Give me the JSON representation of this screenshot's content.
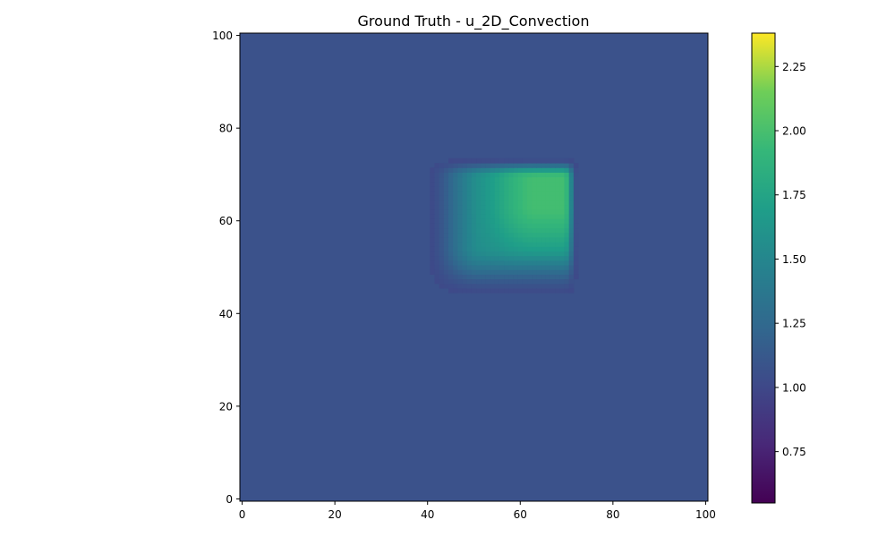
{
  "chart_data": {
    "type": "heatmap",
    "title": "Ground Truth - u_2D_Convection",
    "xlabel": "",
    "ylabel": "",
    "xlim": [
      0,
      101
    ],
    "ylim": [
      0,
      101
    ],
    "x_ticks": [
      0,
      20,
      40,
      60,
      80,
      100
    ],
    "y_ticks": [
      0,
      20,
      40,
      60,
      80,
      100
    ],
    "x_tick_labels": [
      "0",
      "20",
      "40",
      "60",
      "80",
      "100"
    ],
    "y_tick_labels": [
      "0",
      "20",
      "40",
      "60",
      "80",
      "100"
    ],
    "grid": false,
    "colormap": "viridis",
    "colorbar": {
      "vmin": 0.55,
      "vmax": 2.38,
      "ticks": [
        0.75,
        1.0,
        1.25,
        1.5,
        1.75,
        2.0,
        2.25
      ],
      "tick_labels": [
        "0.75",
        "1.00",
        "1.25",
        "1.50",
        "1.75",
        "2.00",
        "2.25"
      ]
    },
    "field": {
      "background": 1.0,
      "peak": 1.98,
      "core_value": 1.94,
      "blob_x_range": [
        40,
        73
      ],
      "blob_y_range": [
        44,
        74
      ],
      "brightest_center": [
        64,
        64
      ]
    }
  }
}
